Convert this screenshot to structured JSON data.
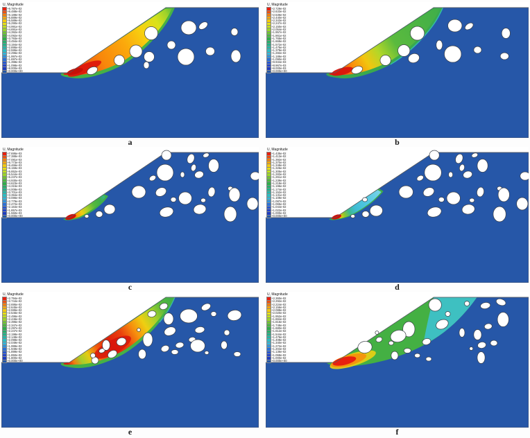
{
  "legend_title": "U, Magnitude",
  "colors": {
    "domain": "#2657a8",
    "boulder_fill": "#ffffff",
    "outline": "#54585f"
  },
  "legend_colors": [
    "#e8200f",
    "#f0500f",
    "#f57f0c",
    "#f9a60b",
    "#f4c90e",
    "#e8e112",
    "#c3e01d",
    "#9bd52a",
    "#6fc433",
    "#4cb83e",
    "#2fae4a",
    "#26b06b",
    "#22b389",
    "#25b7a8",
    "#2bbcc4",
    "#33b4d8",
    "#2f93dd",
    "#2a71d8",
    "#2657d2",
    "#2446cb",
    "#1d3cc0",
    "#2458a8"
  ],
  "panels": [
    {
      "label": "a",
      "legend_values": [
        "+6.787e-02",
        "+6.488e-02",
        "+6.188e-02",
        "+5.889e-02",
        "+5.589e-02",
        "+5.290e-02",
        "+4.991e-02",
        "+4.691e-02",
        "+4.392e-02",
        "+4.092e-02",
        "+3.793e-02",
        "+3.494e-02",
        "+3.194e-02",
        "+2.895e-02",
        "+2.595e-02",
        "+2.296e-02",
        "+1.997e-02",
        "+1.697e-02",
        "+1.398e-02",
        "+1.098e-02",
        "+8.000e-03",
        "+0.000e+00"
      ]
    },
    {
      "label": "b",
      "legend_values": [
        "+2.729e-02",
        "+2.633e-02",
        "+2.536e-02",
        "+2.440e-02",
        "+2.343e-02",
        "+2.247e-02",
        "+2.150e-02",
        "+2.054e-02",
        "+1.957e-02",
        "+1.861e-02",
        "+1.765e-02",
        "+1.668e-02",
        "+1.572e-02",
        "+1.475e-02",
        "+1.379e-02",
        "+1.282e-02",
        "+1.186e-02",
        "+1.090e-02",
        "+9.934e-03",
        "+8.967e-03",
        "+8.000e-03",
        "+0.000e+00"
      ]
    },
    {
      "label": "c",
      "legend_values": [
        "+7.695e-03",
        "+7.388e-03",
        "+7.081e-03",
        "+6.773e-03",
        "+6.466e-03",
        "+6.159e-03",
        "+5.852e-03",
        "+5.544e-03",
        "+5.237e-03",
        "+4.930e-03",
        "+4.623e-03",
        "+4.315e-03",
        "+4.008e-03",
        "+3.701e-03",
        "+3.394e-03",
        "+3.086e-03",
        "+2.779e-03",
        "+2.472e-03",
        "+2.164e-03",
        "+1.857e-03",
        "+1.550e-03",
        "+0.000e+00"
      ]
    },
    {
      "label": "d",
      "legend_values": [
        "+1.435e-02",
        "+1.413e-02",
        "+1.392e-02",
        "+1.370e-02",
        "+1.348e-02",
        "+1.326e-02",
        "+1.305e-02",
        "+1.283e-02",
        "+1.261e-02",
        "+1.239e-02",
        "+1.218e-02",
        "+1.196e-02",
        "+1.174e-02",
        "+1.152e-02",
        "+1.131e-02",
        "+1.109e-02",
        "+1.087e-02",
        "+1.065e-02",
        "+1.044e-02",
        "+1.022e-02",
        "+1.000e-02",
        "+0.000e+00"
      ]
    },
    {
      "label": "e",
      "legend_values": [
        "+2.794e-02",
        "+2.744e-02",
        "+2.695e-02",
        "+2.645e-02",
        "+2.595e-02",
        "+2.546e-02",
        "+2.496e-02",
        "+2.446e-02",
        "+2.396e-02",
        "+2.347e-02",
        "+2.297e-02",
        "+2.247e-02",
        "+2.198e-02",
        "+2.148e-02",
        "+2.098e-02",
        "+2.049e-02",
        "+1.999e-02",
        "+1.949e-02",
        "+1.899e-02",
        "+1.850e-02",
        "+1.800e-02",
        "+0.000e+00"
      ]
    },
    {
      "label": "f",
      "legend_values": [
        "+2.360e-02",
        "+2.292e-02",
        "+2.224e-02",
        "+2.156e-02",
        "+2.088e-02",
        "+2.020e-02",
        "+1.952e-02",
        "+1.884e-02",
        "+1.816e-02",
        "+1.748e-02",
        "+1.680e-02",
        "+1.612e-02",
        "+1.544e-02",
        "+1.476e-02",
        "+1.408e-02",
        "+1.340e-02",
        "+1.272e-02",
        "+1.204e-02",
        "+1.136e-02",
        "+1.068e-02",
        "+1.000e-02",
        "+0.000e+00"
      ]
    }
  ]
}
